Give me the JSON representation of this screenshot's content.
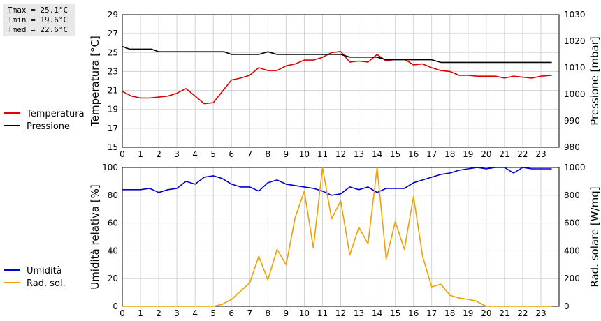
{
  "stats": {
    "tmax": "Tmax = 25.1°C",
    "tmin": "Tmin = 19.6°C",
    "tmed": "Tmed = 22.6°C"
  },
  "chart_data": [
    {
      "type": "line",
      "x_ticks": [
        0,
        1,
        2,
        3,
        4,
        5,
        6,
        7,
        8,
        9,
        10,
        11,
        12,
        13,
        14,
        15,
        16,
        17,
        18,
        19,
        20,
        21,
        22,
        23
      ],
      "xlim": [
        0,
        24
      ],
      "ylabel_left": "Temperatura [°C]",
      "ylim_left": [
        15,
        29
      ],
      "yticks_left": [
        15,
        17,
        19,
        21,
        23,
        25,
        27,
        29
      ],
      "ylabel_right": "Pressione [mbar]",
      "ylim_right": [
        980,
        1030
      ],
      "yticks_right": [
        980,
        990,
        1000,
        1010,
        1020,
        1030
      ],
      "grid": true,
      "legend_position": "left",
      "series": [
        {
          "name": "Temperatura",
          "axis": "left",
          "color": "#dd0000",
          "x": [
            0,
            0.5,
            1,
            1.5,
            2,
            2.5,
            3,
            3.5,
            4,
            4.5,
            5,
            5.5,
            6,
            6.5,
            7,
            7.5,
            8,
            8.5,
            9,
            9.5,
            10,
            10.5,
            11,
            11.5,
            12,
            12.5,
            13,
            13.5,
            14,
            14.5,
            15,
            15.5,
            16,
            16.5,
            17,
            17.5,
            18,
            18.5,
            19,
            19.5,
            20,
            20.5,
            21,
            21.5,
            22,
            22.5,
            23,
            23.6
          ],
          "y": [
            20.9,
            20.4,
            20.2,
            20.2,
            20.3,
            20.4,
            20.7,
            21.2,
            20.4,
            19.6,
            19.7,
            20.9,
            22.1,
            22.3,
            22.6,
            23.4,
            23.1,
            23.1,
            23.6,
            23.8,
            24.2,
            24.2,
            24.5,
            25.0,
            25.1,
            24.0,
            24.1,
            24.0,
            24.8,
            24.1,
            24.3,
            24.3,
            23.7,
            23.8,
            23.4,
            23.1,
            23.0,
            22.6,
            22.6,
            22.5,
            22.5,
            22.5,
            22.3,
            22.5,
            22.4,
            22.3,
            22.5,
            22.6
          ]
        },
        {
          "name": "Pressione",
          "axis": "right",
          "color": "#000000",
          "x": [
            0,
            0.4,
            1,
            1.6,
            2,
            3,
            4,
            5,
            5.6,
            6,
            7,
            7.5,
            8,
            8.5,
            9,
            10,
            11,
            12,
            12.5,
            13,
            14,
            14.5,
            15,
            16,
            17,
            17.5,
            18,
            19,
            20,
            21,
            22,
            23,
            23.6
          ],
          "y": [
            1018,
            1017,
            1017,
            1017,
            1016,
            1016,
            1016,
            1016,
            1016,
            1015,
            1015,
            1015,
            1016,
            1015,
            1015,
            1015,
            1015,
            1015,
            1014,
            1014,
            1014,
            1013,
            1013,
            1013,
            1013,
            1012,
            1012,
            1012,
            1012,
            1012,
            1012,
            1012,
            1012
          ]
        }
      ]
    },
    {
      "type": "line",
      "x_ticks": [
        0,
        1,
        2,
        3,
        4,
        5,
        6,
        7,
        8,
        9,
        10,
        11,
        12,
        13,
        14,
        15,
        16,
        17,
        18,
        19,
        20,
        21,
        22,
        23
      ],
      "xlim": [
        0,
        24
      ],
      "ylabel_left": "Umidità relativa [%]",
      "ylim_left": [
        0,
        100
      ],
      "yticks_left": [
        0,
        20,
        40,
        60,
        80,
        100
      ],
      "ylabel_right": "Rad. solare [W/mq]",
      "ylim_right": [
        0,
        1000
      ],
      "yticks_right": [
        0,
        200,
        400,
        600,
        800,
        1000
      ],
      "grid": true,
      "legend_position": "left",
      "series": [
        {
          "name": "Umidità",
          "axis": "left",
          "color": "#0000cc",
          "x": [
            0,
            0.5,
            1,
            1.5,
            2,
            2.5,
            3,
            3.5,
            4,
            4.5,
            5,
            5.5,
            6,
            6.5,
            7,
            7.5,
            8,
            8.5,
            9,
            9.5,
            10,
            10.5,
            11,
            11.5,
            12,
            12.5,
            13,
            13.5,
            14,
            14.5,
            15,
            15.5,
            16,
            16.5,
            17,
            17.5,
            18,
            18.5,
            19,
            19.5,
            20,
            20.5,
            21,
            21.5,
            22,
            22.5,
            23,
            23.6
          ],
          "y": [
            84,
            84,
            84,
            85,
            82,
            84,
            85,
            90,
            88,
            93,
            94,
            92,
            88,
            86,
            86,
            83,
            89,
            91,
            88,
            87,
            86,
            85,
            83,
            80,
            81,
            86,
            84,
            86,
            82,
            85,
            85,
            85,
            89,
            91,
            93,
            95,
            96,
            98,
            99,
            100,
            99,
            100,
            100,
            96,
            100,
            99,
            99,
            99
          ]
        },
        {
          "name": "Rad. sol.",
          "axis": "right",
          "color": "#f0a000",
          "x": [
            0,
            1,
            2,
            3,
            4,
            5,
            5.5,
            6,
            6.5,
            7,
            7.5,
            8,
            8.5,
            9,
            9.5,
            10,
            10.5,
            11,
            11.5,
            12,
            12.5,
            13,
            13.5,
            14,
            14.5,
            15,
            15.5,
            16,
            16.5,
            17,
            17.5,
            18,
            18.5,
            19,
            19.4,
            20,
            21,
            22,
            23,
            23.6
          ],
          "y": [
            0,
            0,
            0,
            0,
            0,
            0,
            15,
            50,
            110,
            170,
            360,
            190,
            410,
            300,
            640,
            830,
            420,
            1000,
            630,
            760,
            370,
            570,
            450,
            1000,
            340,
            610,
            410,
            790,
            360,
            140,
            160,
            80,
            60,
            50,
            40,
            0,
            0,
            0,
            0,
            0
          ]
        }
      ]
    }
  ]
}
